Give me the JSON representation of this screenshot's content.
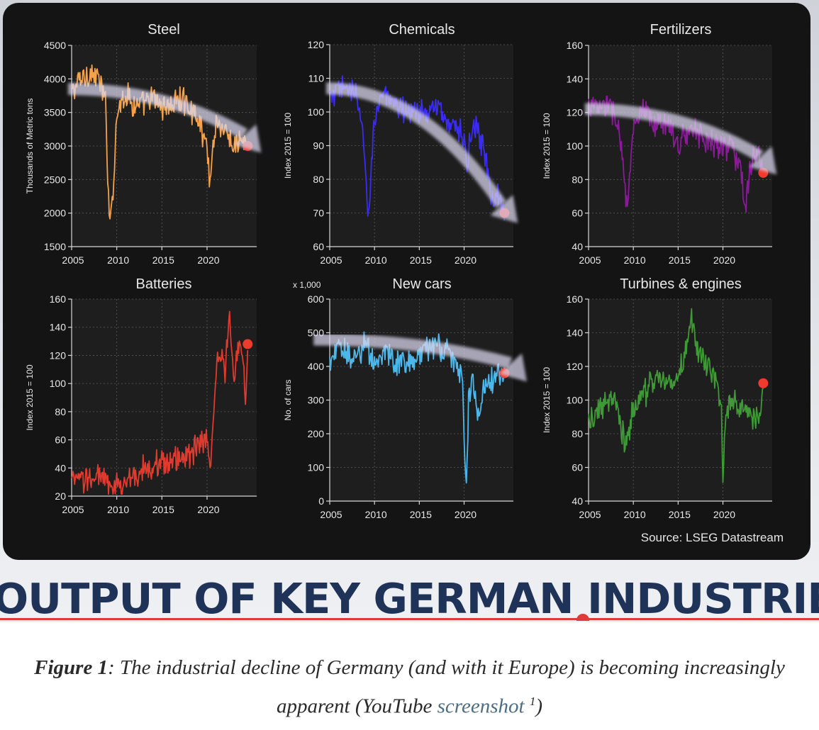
{
  "chart_data": [
    {
      "type": "line",
      "title": "Steel",
      "xlabel": "",
      "ylabel": "Thousands of Metric tons",
      "xlim": [
        2005,
        2025.5
      ],
      "ylim": [
        1500,
        4500
      ],
      "xticks": [
        2005,
        2010,
        2015,
        2020
      ],
      "yticks": [
        1500,
        2000,
        2500,
        3000,
        3500,
        4000,
        4500
      ],
      "grid": true,
      "color": "#f5a24a",
      "y_multiplier_label": "",
      "series": [
        {
          "x": [
            2005.0,
            2006.0,
            2007.0,
            2008.0,
            2008.8,
            2009.0,
            2009.3,
            2009.6,
            2010.0,
            2011.0,
            2012.0,
            2013.0,
            2014.0,
            2015.0,
            2016.0,
            2017.0,
            2018.0,
            2019.0,
            2020.0,
            2020.3,
            2021.0,
            2022.0,
            2023.0,
            2024.0,
            2024.5
          ],
          "values": [
            3800,
            4000,
            4100,
            4000,
            3600,
            2500,
            1900,
            2400,
            3500,
            3800,
            3600,
            3600,
            3700,
            3600,
            3600,
            3700,
            3600,
            3400,
            3000,
            2500,
            3400,
            3200,
            3000,
            3100,
            3000
          ]
        }
      ],
      "trend_arrow": {
        "from": [
          2004.6,
          3850
        ],
        "to": [
          2026.0,
          2900
        ]
      },
      "endpoint": {
        "x": 2024.5,
        "y": 3000
      }
    },
    {
      "type": "line",
      "title": "Chemicals",
      "xlabel": "",
      "ylabel": "Index 2015 = 100",
      "xlim": [
        2005,
        2025.5
      ],
      "ylim": [
        60,
        120
      ],
      "xticks": [
        2005,
        2010,
        2015,
        2020
      ],
      "yticks": [
        60,
        70,
        80,
        90,
        100,
        110,
        120
      ],
      "grid": true,
      "color": "#3a2cf2",
      "y_multiplier_label": "",
      "series": [
        {
          "x": [
            2005.0,
            2006.0,
            2007.0,
            2008.0,
            2008.7,
            2009.0,
            2009.3,
            2010.0,
            2011.0,
            2012.0,
            2013.0,
            2014.0,
            2015.0,
            2016.0,
            2017.0,
            2018.0,
            2019.0,
            2020.0,
            2020.3,
            2021.0,
            2022.0,
            2022.7,
            2023.0,
            2024.0,
            2024.5
          ],
          "values": [
            104,
            106,
            108,
            104,
            95,
            80,
            68,
            100,
            106,
            101,
            101,
            101,
            100,
            100,
            101,
            98,
            96,
            92,
            85,
            96,
            90,
            82,
            74,
            76,
            70
          ]
        }
      ],
      "trend_arrow": {
        "from": [
          2004.6,
          107
        ],
        "to": [
          2026.0,
          67
        ]
      },
      "endpoint": {
        "x": 2024.5,
        "y": 70
      }
    },
    {
      "type": "line",
      "title": "Fertilizers",
      "xlabel": "",
      "ylabel": "Index 2015 = 100",
      "xlim": [
        2005,
        2025.5
      ],
      "ylim": [
        40,
        160
      ],
      "xticks": [
        2005,
        2010,
        2015,
        2020
      ],
      "yticks": [
        40,
        60,
        80,
        100,
        120,
        140,
        160
      ],
      "grid": true,
      "color": "#8a1a9a",
      "y_multiplier_label": "",
      "series": [
        {
          "x": [
            2005.0,
            2006.0,
            2007.0,
            2008.0,
            2008.7,
            2009.0,
            2009.3,
            2010.0,
            2011.0,
            2012.0,
            2013.0,
            2014.0,
            2015.0,
            2016.0,
            2017.0,
            2018.0,
            2019.0,
            2020.0,
            2021.0,
            2022.0,
            2022.5,
            2023.0,
            2024.0,
            2024.5
          ],
          "values": [
            125,
            122,
            125,
            118,
            100,
            80,
            60,
            110,
            120,
            115,
            112,
            115,
            100,
            108,
            110,
            104,
            102,
            100,
            100,
            85,
            60,
            88,
            95,
            84
          ]
        }
      ],
      "trend_arrow": {
        "from": [
          2004.6,
          122
        ],
        "to": [
          2026.0,
          83
        ]
      },
      "endpoint": {
        "x": 2024.5,
        "y": 84
      }
    },
    {
      "type": "line",
      "title": "Batteries",
      "xlabel": "",
      "ylabel": "Index 2015 = 100",
      "xlim": [
        2005,
        2025.5
      ],
      "ylim": [
        20,
        160
      ],
      "xticks": [
        2005,
        2010,
        2015,
        2020
      ],
      "yticks": [
        20,
        40,
        60,
        80,
        100,
        120,
        140,
        160
      ],
      "grid": true,
      "color": "#e03a2e",
      "y_multiplier_label": "",
      "series": [
        {
          "x": [
            2005.0,
            2006.0,
            2007.0,
            2008.0,
            2008.8,
            2009.5,
            2010.0,
            2011.0,
            2012.0,
            2013.0,
            2014.0,
            2015.0,
            2016.0,
            2017.0,
            2018.0,
            2019.0,
            2020.0,
            2020.3,
            2020.7,
            2021.0,
            2021.5,
            2022.0,
            2022.5,
            2023.0,
            2023.5,
            2024.0,
            2024.3,
            2024.5
          ],
          "values": [
            30,
            31,
            33,
            35,
            30,
            24,
            27,
            30,
            34,
            40,
            42,
            45,
            44,
            48,
            50,
            55,
            60,
            35,
            80,
            110,
            125,
            110,
            148,
            100,
            130,
            115,
            78,
            128
          ]
        }
      ],
      "trend_arrow": null,
      "endpoint": {
        "x": 2024.5,
        "y": 128
      }
    },
    {
      "type": "line",
      "title": "New cars",
      "xlabel": "",
      "ylabel": "No. of cars",
      "xlim": [
        2005,
        2025.5
      ],
      "ylim": [
        0,
        600
      ],
      "xticks": [
        2005,
        2010,
        2015,
        2020
      ],
      "yticks": [
        0,
        100,
        200,
        300,
        400,
        500,
        600
      ],
      "grid": true,
      "color": "#4cb7ea",
      "y_multiplier_label": "x 1,000",
      "series": [
        {
          "x": [
            2005.0,
            2006.0,
            2007.0,
            2008.0,
            2009.0,
            2010.0,
            2011.0,
            2012.0,
            2013.0,
            2014.0,
            2015.0,
            2016.0,
            2017.0,
            2018.0,
            2019.0,
            2019.8,
            2020.2,
            2020.5,
            2021.0,
            2021.5,
            2022.0,
            2023.0,
            2024.0,
            2024.5
          ],
          "values": [
            420,
            450,
            440,
            430,
            480,
            400,
            440,
            420,
            400,
            420,
            440,
            450,
            460,
            440,
            420,
            380,
            20,
            300,
            380,
            240,
            320,
            360,
            370,
            380
          ]
        }
      ],
      "trend_arrow": {
        "from": [
          2003.2,
          480
        ],
        "to": [
          2027.0,
          355
        ]
      },
      "endpoint": {
        "x": 2024.5,
        "y": 380
      }
    },
    {
      "type": "line",
      "title": "Turbines & engines",
      "xlabel": "",
      "ylabel": "Index 2015 = 100",
      "xlim": [
        2005,
        2025.5
      ],
      "ylim": [
        40,
        160
      ],
      "xticks": [
        2005,
        2010,
        2015,
        2020
      ],
      "yticks": [
        40,
        60,
        80,
        100,
        120,
        140,
        160
      ],
      "grid": true,
      "color": "#3d9a35",
      "y_multiplier_label": "",
      "series": [
        {
          "x": [
            2005.0,
            2006.0,
            2007.0,
            2008.0,
            2008.8,
            2009.2,
            2010.0,
            2011.0,
            2012.0,
            2013.0,
            2014.0,
            2015.0,
            2016.0,
            2016.5,
            2017.0,
            2018.0,
            2019.0,
            2019.8,
            2020.0,
            2020.3,
            2021.0,
            2022.0,
            2023.0,
            2024.0,
            2024.5
          ],
          "values": [
            85,
            92,
            98,
            100,
            80,
            72,
            95,
            102,
            110,
            112,
            110,
            115,
            130,
            150,
            132,
            120,
            115,
            100,
            50,
            95,
            100,
            95,
            90,
            90,
            110
          ]
        }
      ],
      "trend_arrow": null,
      "endpoint": {
        "x": 2024.5,
        "y": 110
      }
    }
  ],
  "source_note": "Source: LSEG Datastream",
  "banner_title": "OUTPUT OF KEY GERMAN INDUSTRIES",
  "caption": {
    "label": "Figure 1",
    "separator": ": ",
    "text": "The industrial decline of Germany (and with it Europe) is becoming increasingly apparent (YouTube ",
    "link_text": "screenshot",
    "footnote": "1",
    "closing": ")"
  }
}
